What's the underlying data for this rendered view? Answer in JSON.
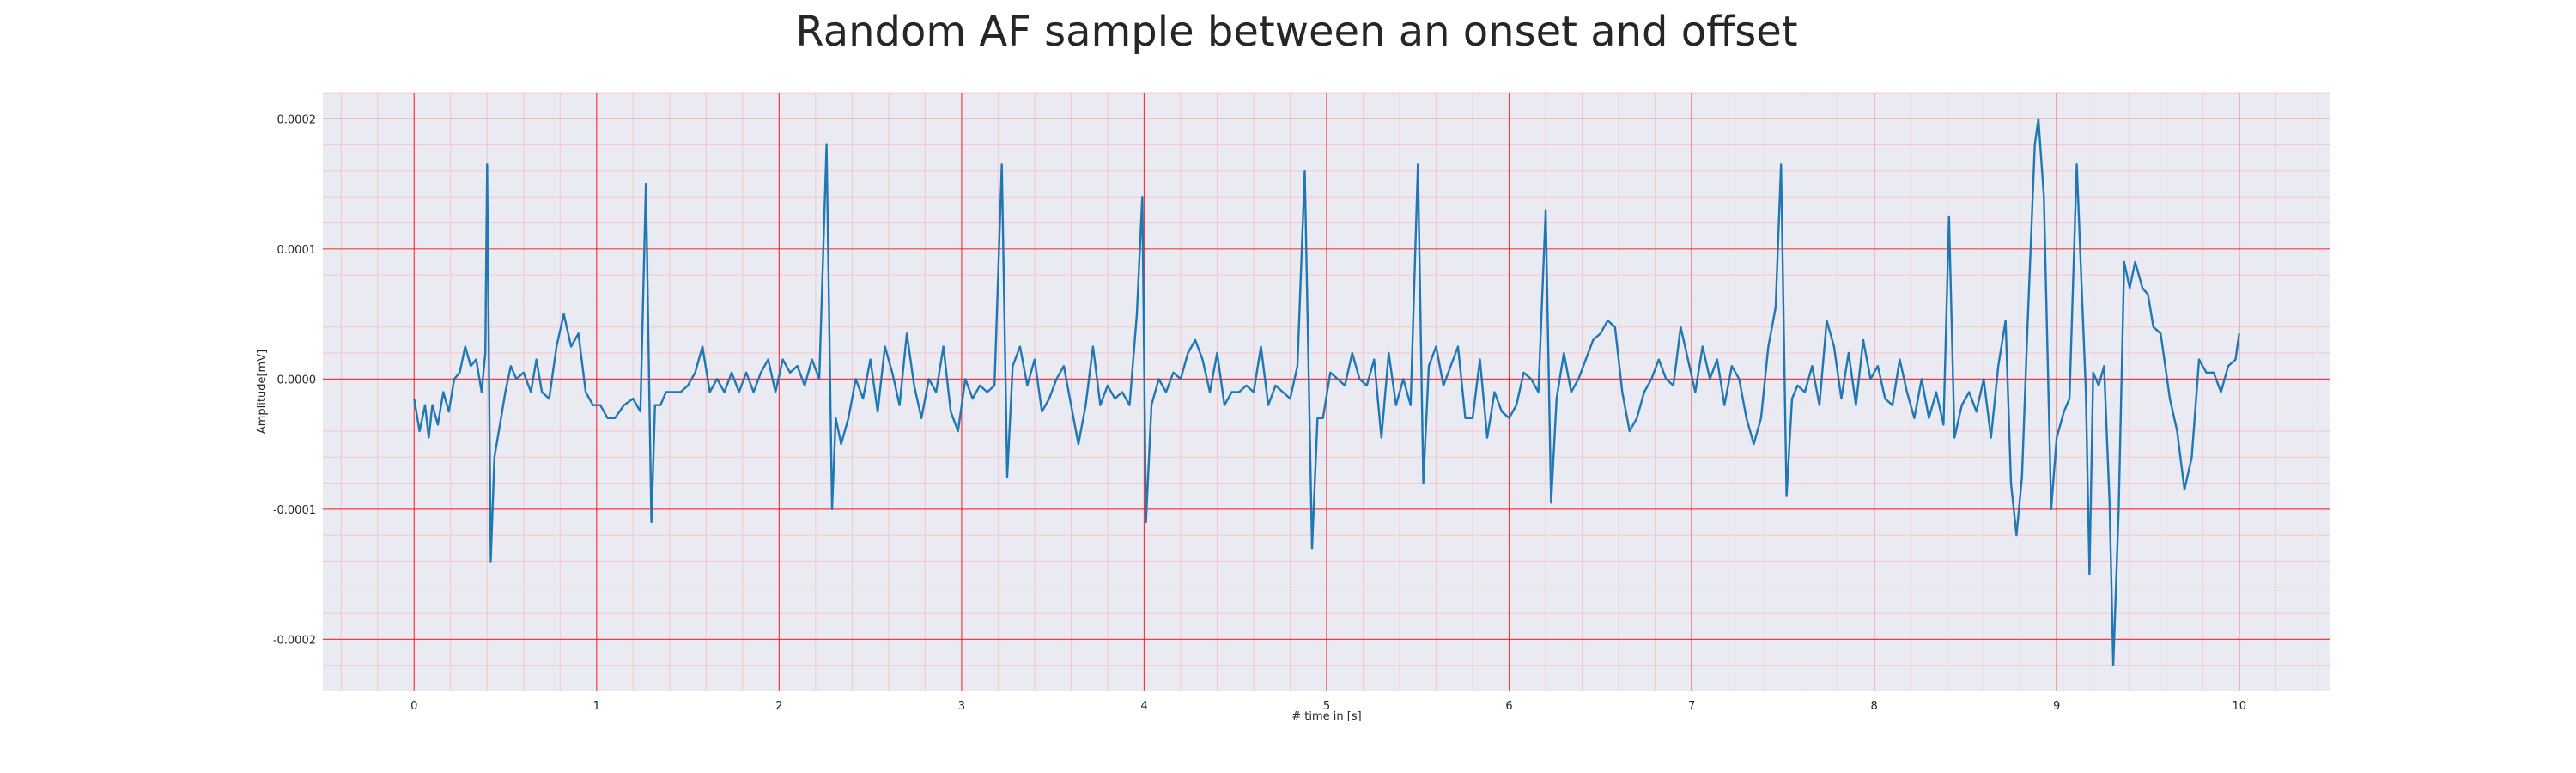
{
  "chart_data": {
    "type": "line",
    "title": "Random AF sample between an onset and offset",
    "xlabel": "# time in [s]",
    "ylabel": "Amplitude[mV]",
    "xlim": [
      -0.5,
      10.5
    ],
    "ylim": [
      -0.00024,
      0.00022
    ],
    "x_ticks": [
      0,
      1,
      2,
      3,
      4,
      5,
      6,
      7,
      8,
      9,
      10
    ],
    "x_tick_labels": [
      "0",
      "1",
      "2",
      "3",
      "4",
      "5",
      "6",
      "7",
      "8",
      "9",
      "10"
    ],
    "y_ticks": [
      0.0002,
      0.0001,
      0.0,
      -0.0001,
      -0.0002
    ],
    "y_tick_labels": [
      "0.0002",
      "0.0001",
      "0.0000",
      "-0.0001",
      "-0.0002"
    ],
    "grid": {
      "major": true,
      "minor": true
    },
    "legend": "none",
    "colors": {
      "line": "#1f77b4",
      "axes_bg": "#eaeaf2",
      "major_grid": "#ff0000",
      "minor_grid": "#ffb0b0"
    },
    "series": [
      {
        "values": [
          [
            0.0,
            -1.5e-05
          ],
          [
            0.03,
            -4e-05
          ],
          [
            0.06,
            -2e-05
          ],
          [
            0.08,
            -4.5e-05
          ],
          [
            0.1,
            -2e-05
          ],
          [
            0.13,
            -3.5e-05
          ],
          [
            0.16,
            -1e-05
          ],
          [
            0.19,
            -2.5e-05
          ],
          [
            0.22,
            0.0
          ],
          [
            0.25,
            5e-06
          ],
          [
            0.28,
            2.5e-05
          ],
          [
            0.31,
            1e-05
          ],
          [
            0.34,
            1.5e-05
          ],
          [
            0.37,
            -1e-05
          ],
          [
            0.39,
            2e-05
          ],
          [
            0.4,
            0.000165
          ],
          [
            0.42,
            -0.00014
          ],
          [
            0.44,
            -6e-05
          ],
          [
            0.47,
            -3.5e-05
          ],
          [
            0.5,
            -1e-05
          ],
          [
            0.53,
            1e-05
          ],
          [
            0.56,
            0.0
          ],
          [
            0.6,
            5e-06
          ],
          [
            0.64,
            -1e-05
          ],
          [
            0.67,
            1.5e-05
          ],
          [
            0.7,
            -1e-05
          ],
          [
            0.74,
            -1.5e-05
          ],
          [
            0.78,
            2.5e-05
          ],
          [
            0.82,
            5e-05
          ],
          [
            0.86,
            2.5e-05
          ],
          [
            0.9,
            3.5e-05
          ],
          [
            0.94,
            -1e-05
          ],
          [
            0.98,
            -2e-05
          ],
          [
            1.02,
            -2e-05
          ],
          [
            1.06,
            -3e-05
          ],
          [
            1.1,
            -3e-05
          ],
          [
            1.15,
            -2e-05
          ],
          [
            1.2,
            -1.5e-05
          ],
          [
            1.24,
            -2.5e-05
          ],
          [
            1.27,
            0.00015
          ],
          [
            1.3,
            -0.00011
          ],
          [
            1.32,
            -2e-05
          ],
          [
            1.35,
            -2e-05
          ],
          [
            1.38,
            -1e-05
          ],
          [
            1.42,
            -1e-05
          ],
          [
            1.46,
            -1e-05
          ],
          [
            1.5,
            -5e-06
          ],
          [
            1.54,
            5e-06
          ],
          [
            1.58,
            2.5e-05
          ],
          [
            1.62,
            -1e-05
          ],
          [
            1.66,
            0.0
          ],
          [
            1.7,
            -1e-05
          ],
          [
            1.74,
            5e-06
          ],
          [
            1.78,
            -1e-05
          ],
          [
            1.82,
            5e-06
          ],
          [
            1.86,
            -1e-05
          ],
          [
            1.9,
            5e-06
          ],
          [
            1.94,
            1.5e-05
          ],
          [
            1.98,
            -1e-05
          ],
          [
            2.02,
            1.5e-05
          ],
          [
            2.06,
            5e-06
          ],
          [
            2.1,
            1e-05
          ],
          [
            2.14,
            -5e-06
          ],
          [
            2.18,
            1.5e-05
          ],
          [
            2.22,
            0.0
          ],
          [
            2.26,
            0.00018
          ],
          [
            2.29,
            -0.0001
          ],
          [
            2.31,
            -3e-05
          ],
          [
            2.34,
            -5e-05
          ],
          [
            2.38,
            -3e-05
          ],
          [
            2.42,
            0.0
          ],
          [
            2.46,
            -1.5e-05
          ],
          [
            2.5,
            1.5e-05
          ],
          [
            2.54,
            -2.5e-05
          ],
          [
            2.58,
            2.5e-05
          ],
          [
            2.62,
            5e-06
          ],
          [
            2.66,
            -2e-05
          ],
          [
            2.7,
            3.5e-05
          ],
          [
            2.74,
            -5e-06
          ],
          [
            2.78,
            -3e-05
          ],
          [
            2.82,
            0.0
          ],
          [
            2.86,
            -1e-05
          ],
          [
            2.9,
            2.5e-05
          ],
          [
            2.94,
            -2.5e-05
          ],
          [
            2.98,
            -4e-05
          ],
          [
            3.02,
            0.0
          ],
          [
            3.06,
            -1.5e-05
          ],
          [
            3.1,
            -5e-06
          ],
          [
            3.14,
            -1e-05
          ],
          [
            3.18,
            -5e-06
          ],
          [
            3.22,
            0.000165
          ],
          [
            3.25,
            -7.5e-05
          ],
          [
            3.28,
            1e-05
          ],
          [
            3.32,
            2.5e-05
          ],
          [
            3.36,
            -5e-06
          ],
          [
            3.4,
            1.5e-05
          ],
          [
            3.44,
            -2.5e-05
          ],
          [
            3.48,
            -1.5e-05
          ],
          [
            3.52,
            0.0
          ],
          [
            3.56,
            1e-05
          ],
          [
            3.6,
            -2e-05
          ],
          [
            3.64,
            -5e-05
          ],
          [
            3.68,
            -2e-05
          ],
          [
            3.72,
            2.5e-05
          ],
          [
            3.76,
            -2e-05
          ],
          [
            3.8,
            -5e-06
          ],
          [
            3.84,
            -1.5e-05
          ],
          [
            3.88,
            -1e-05
          ],
          [
            3.92,
            -2e-05
          ],
          [
            3.96,
            5e-05
          ],
          [
            3.99,
            0.00014
          ],
          [
            4.01,
            -0.00011
          ],
          [
            4.04,
            -2e-05
          ],
          [
            4.08,
            0.0
          ],
          [
            4.12,
            -1e-05
          ],
          [
            4.16,
            5e-06
          ],
          [
            4.2,
            0.0
          ],
          [
            4.24,
            2e-05
          ],
          [
            4.28,
            3e-05
          ],
          [
            4.32,
            1.5e-05
          ],
          [
            4.36,
            -1e-05
          ],
          [
            4.4,
            2e-05
          ],
          [
            4.44,
            -2e-05
          ],
          [
            4.48,
            -1e-05
          ],
          [
            4.52,
            -1e-05
          ],
          [
            4.56,
            -5e-06
          ],
          [
            4.6,
            -1e-05
          ],
          [
            4.64,
            2.5e-05
          ],
          [
            4.68,
            -2e-05
          ],
          [
            4.72,
            -5e-06
          ],
          [
            4.76,
            -1e-05
          ],
          [
            4.8,
            -1.5e-05
          ],
          [
            4.84,
            1e-05
          ],
          [
            4.88,
            0.00016
          ],
          [
            4.92,
            -0.00013
          ],
          [
            4.95,
            -3e-05
          ],
          [
            4.98,
            -3e-05
          ],
          [
            5.02,
            5e-06
          ],
          [
            5.06,
            0.0
          ],
          [
            5.1,
            -5e-06
          ],
          [
            5.14,
            2e-05
          ],
          [
            5.18,
            0.0
          ],
          [
            5.22,
            -5e-06
          ],
          [
            5.26,
            1.5e-05
          ],
          [
            5.3,
            -4.5e-05
          ],
          [
            5.34,
            2e-05
          ],
          [
            5.38,
            -2e-05
          ],
          [
            5.42,
            0.0
          ],
          [
            5.46,
            -2e-05
          ],
          [
            5.5,
            0.000165
          ],
          [
            5.53,
            -8e-05
          ],
          [
            5.56,
            1e-05
          ],
          [
            5.6,
            2.5e-05
          ],
          [
            5.64,
            -5e-06
          ],
          [
            5.68,
            1e-05
          ],
          [
            5.72,
            2.5e-05
          ],
          [
            5.76,
            -3e-05
          ],
          [
            5.8,
            -3e-05
          ],
          [
            5.84,
            1.5e-05
          ],
          [
            5.88,
            -4.5e-05
          ],
          [
            5.92,
            -1e-05
          ],
          [
            5.96,
            -2.5e-05
          ],
          [
            6.0,
            -3e-05
          ],
          [
            6.04,
            -2e-05
          ],
          [
            6.08,
            5e-06
          ],
          [
            6.12,
            0.0
          ],
          [
            6.16,
            -1e-05
          ],
          [
            6.2,
            0.00013
          ],
          [
            6.23,
            -9.5e-05
          ],
          [
            6.26,
            -1.5e-05
          ],
          [
            6.3,
            2e-05
          ],
          [
            6.34,
            -1e-05
          ],
          [
            6.38,
            0.0
          ],
          [
            6.42,
            1.5e-05
          ],
          [
            6.46,
            3e-05
          ],
          [
            6.5,
            3.5e-05
          ],
          [
            6.54,
            4.5e-05
          ],
          [
            6.58,
            4e-05
          ],
          [
            6.62,
            -1e-05
          ],
          [
            6.66,
            -4e-05
          ],
          [
            6.7,
            -3e-05
          ],
          [
            6.74,
            -1e-05
          ],
          [
            6.78,
            0.0
          ],
          [
            6.82,
            1.5e-05
          ],
          [
            6.86,
            0.0
          ],
          [
            6.9,
            -5e-06
          ],
          [
            6.94,
            4e-05
          ],
          [
            6.98,
            1.5e-05
          ],
          [
            7.02,
            -1e-05
          ],
          [
            7.06,
            2.5e-05
          ],
          [
            7.1,
            0.0
          ],
          [
            7.14,
            1.5e-05
          ],
          [
            7.18,
            -2e-05
          ],
          [
            7.22,
            1e-05
          ],
          [
            7.26,
            0.0
          ],
          [
            7.3,
            -3e-05
          ],
          [
            7.34,
            -5e-05
          ],
          [
            7.38,
            -3e-05
          ],
          [
            7.42,
            2.5e-05
          ],
          [
            7.46,
            5.5e-05
          ],
          [
            7.49,
            0.000165
          ],
          [
            7.52,
            -9e-05
          ],
          [
            7.55,
            -1.5e-05
          ],
          [
            7.58,
            -5e-06
          ],
          [
            7.62,
            -1e-05
          ],
          [
            7.66,
            1e-05
          ],
          [
            7.7,
            -2e-05
          ],
          [
            7.74,
            4.5e-05
          ],
          [
            7.78,
            2.5e-05
          ],
          [
            7.82,
            -1.5e-05
          ],
          [
            7.86,
            2e-05
          ],
          [
            7.9,
            -2e-05
          ],
          [
            7.94,
            3e-05
          ],
          [
            7.98,
            0.0
          ],
          [
            8.02,
            1e-05
          ],
          [
            8.06,
            -1.5e-05
          ],
          [
            8.1,
            -2e-05
          ],
          [
            8.14,
            1.5e-05
          ],
          [
            8.18,
            -1e-05
          ],
          [
            8.22,
            -3e-05
          ],
          [
            8.26,
            0.0
          ],
          [
            8.3,
            -3e-05
          ],
          [
            8.34,
            -1e-05
          ],
          [
            8.38,
            -3.5e-05
          ],
          [
            8.41,
            0.000125
          ],
          [
            8.44,
            -4.5e-05
          ],
          [
            8.48,
            -2e-05
          ],
          [
            8.52,
            -1e-05
          ],
          [
            8.56,
            -2.5e-05
          ],
          [
            8.6,
            0.0
          ],
          [
            8.64,
            -4.5e-05
          ],
          [
            8.68,
            1e-05
          ],
          [
            8.72,
            4.5e-05
          ],
          [
            8.75,
            -8e-05
          ],
          [
            8.78,
            -0.00012
          ],
          [
            8.81,
            -7.5e-05
          ],
          [
            8.84,
            4e-05
          ],
          [
            8.88,
            0.00018
          ],
          [
            8.9,
            0.0002
          ],
          [
            8.93,
            0.00014
          ],
          [
            8.97,
            -0.0001
          ],
          [
            9.0,
            -4.5e-05
          ],
          [
            9.04,
            -2.5e-05
          ],
          [
            9.07,
            -1.5e-05
          ],
          [
            9.11,
            0.000165
          ],
          [
            9.13,
            9.5e-05
          ],
          [
            9.16,
            -1e-05
          ],
          [
            9.18,
            -0.00015
          ],
          [
            9.2,
            5e-06
          ],
          [
            9.23,
            -5e-06
          ],
          [
            9.26,
            1e-05
          ],
          [
            9.29,
            -9.5e-05
          ],
          [
            9.31,
            -0.00022
          ],
          [
            9.34,
            -0.0001
          ],
          [
            9.37,
            9e-05
          ],
          [
            9.4,
            7e-05
          ],
          [
            9.43,
            9e-05
          ],
          [
            9.47,
            7e-05
          ],
          [
            9.5,
            6.5e-05
          ],
          [
            9.53,
            4e-05
          ],
          [
            9.57,
            3.5e-05
          ],
          [
            9.62,
            -1.5e-05
          ],
          [
            9.66,
            -4e-05
          ],
          [
            9.7,
            -8.5e-05
          ],
          [
            9.74,
            -6e-05
          ],
          [
            9.78,
            1.5e-05
          ],
          [
            9.82,
            5e-06
          ],
          [
            9.86,
            5e-06
          ],
          [
            9.9,
            -1e-05
          ],
          [
            9.94,
            1e-05
          ],
          [
            9.98,
            1.5e-05
          ],
          [
            10.0,
            3.5e-05
          ]
        ]
      }
    ]
  }
}
